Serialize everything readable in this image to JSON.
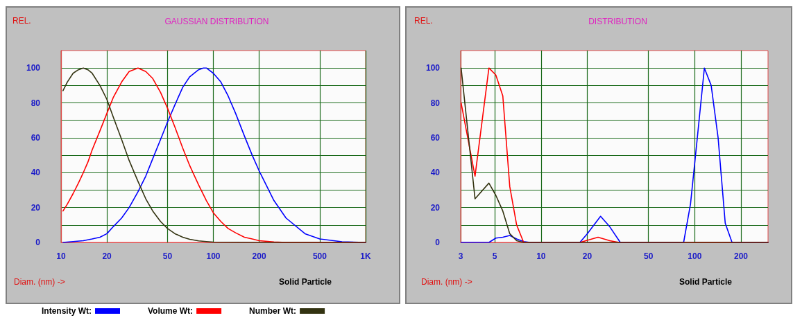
{
  "chart_data": [
    {
      "type": "line",
      "title": "GAUSSIAN DISTRIBUTION",
      "ylabel": "REL.",
      "xlabel": "Diam. (nm) ->",
      "annotations": [
        "Solid Particle"
      ],
      "log": "x",
      "xlim": [
        10,
        1000
      ],
      "xticks": [
        10,
        20,
        50,
        100,
        200,
        500,
        {
          "value": 1000,
          "label": "1K"
        }
      ],
      "ylim": [
        0,
        110
      ],
      "yticks": [
        0,
        {
          "value": 10,
          "label": null
        },
        20,
        {
          "value": 30,
          "label": null
        },
        40,
        {
          "value": 50,
          "label": null
        },
        60,
        {
          "value": 70,
          "label": null
        },
        80,
        {
          "value": 90,
          "label": null
        },
        100
      ],
      "grid": true,
      "legend": "bottom",
      "marker": "none",
      "series": [
        {
          "name": "Intensity Wt:",
          "color": "#0000ff",
          "x": [
            10.3,
            12,
            14,
            16,
            18,
            20,
            22,
            25,
            28,
            32,
            36,
            40,
            45,
            50,
            56,
            63,
            70,
            80,
            86,
            90,
            100,
            112,
            125,
            140,
            160,
            180,
            200,
            250,
            300,
            400,
            500,
            700,
            1000
          ],
          "values": [
            0,
            0.5,
            1,
            2,
            3,
            5,
            9,
            14,
            20,
            29,
            38,
            48,
            59,
            69,
            79,
            89,
            95,
            99,
            100,
            100,
            97,
            92,
            84,
            74,
            61,
            50,
            41,
            24,
            14,
            5,
            2,
            0.4,
            0
          ]
        },
        {
          "name": "Volume Wt:",
          "color": "#ff0000",
          "x": [
            10.3,
            11,
            12,
            13,
            14,
            15,
            16,
            18,
            20,
            22,
            25,
            28,
            32,
            36,
            40,
            45,
            50,
            56,
            63,
            70,
            80,
            90,
            100,
            112,
            125,
            140,
            160,
            180,
            200,
            250,
            300,
            1000
          ],
          "values": [
            18,
            22,
            28,
            34,
            40,
            46,
            53,
            64,
            74,
            83,
            92,
            98,
            100,
            98,
            94,
            86,
            77,
            66,
            54,
            44,
            33,
            24,
            17,
            12,
            8,
            5.5,
            3,
            2,
            1,
            0.3,
            0,
            0
          ]
        },
        {
          "name": "Number Wt:",
          "color": "#333311",
          "x": [
            10.3,
            11,
            12,
            13,
            14,
            15,
            16,
            18,
            20,
            22,
            25,
            28,
            32,
            36,
            40,
            45,
            50,
            56,
            63,
            70,
            80,
            90,
            100,
            200,
            1000
          ],
          "values": [
            87,
            92,
            97,
            99,
            100,
            99,
            97,
            90,
            82,
            72,
            59,
            47,
            35,
            25,
            18,
            12,
            8,
            5,
            3,
            1.8,
            0.9,
            0.5,
            0.2,
            0,
            0
          ]
        }
      ]
    },
    {
      "type": "line",
      "title": "DISTRIBUTION",
      "ylabel": "REL.",
      "xlabel": "Diam. (nm) ->",
      "annotations": [
        "Solid Particle"
      ],
      "log": "x",
      "xlim": [
        3,
        300
      ],
      "xticks": [
        3,
        5,
        10,
        20,
        50,
        100,
        200
      ],
      "ylim": [
        0,
        110
      ],
      "yticks": [
        0,
        {
          "value": 10,
          "label": null
        },
        20,
        {
          "value": 30,
          "label": null
        },
        40,
        {
          "value": 50,
          "label": null
        },
        60,
        {
          "value": 70,
          "label": null
        },
        80,
        {
          "value": 90,
          "label": null
        },
        100
      ],
      "grid": true,
      "marker": "none",
      "series": [
        {
          "color": "#0000ff",
          "x": [
            3.02,
            4.58,
            5.08,
            5.64,
            6.26,
            6.94,
            7.71,
            8.5,
            17.9,
            20,
            24.4,
            28,
            32.8,
            84.7,
            93.9,
            104,
            115.6,
            128,
            142,
            158,
            175,
            300
          ],
          "values": [
            0,
            0,
            2.5,
            3,
            4,
            2,
            0.5,
            0,
            0,
            5,
            15,
            9,
            0,
            0,
            22,
            60,
            100,
            90,
            60,
            11,
            0,
            0
          ]
        },
        {
          "color": "#ff0000",
          "x": [
            3.02,
            3.72,
            4.58,
            5.08,
            5.64,
            6.26,
            6.94,
            7.71,
            17.9,
            23.5,
            28,
            32.2,
            300
          ],
          "values": [
            80,
            38,
            100,
            96,
            84,
            32,
            10,
            0,
            0,
            3,
            1,
            0,
            0
          ]
        },
        {
          "color": "#333311",
          "x": [
            3.02,
            3.72,
            4.58,
            5.08,
            5.64,
            6.26,
            6.94,
            7.71,
            300
          ],
          "values": [
            100,
            25,
            34,
            27,
            18,
            5,
            1,
            0,
            0
          ]
        }
      ]
    }
  ]
}
